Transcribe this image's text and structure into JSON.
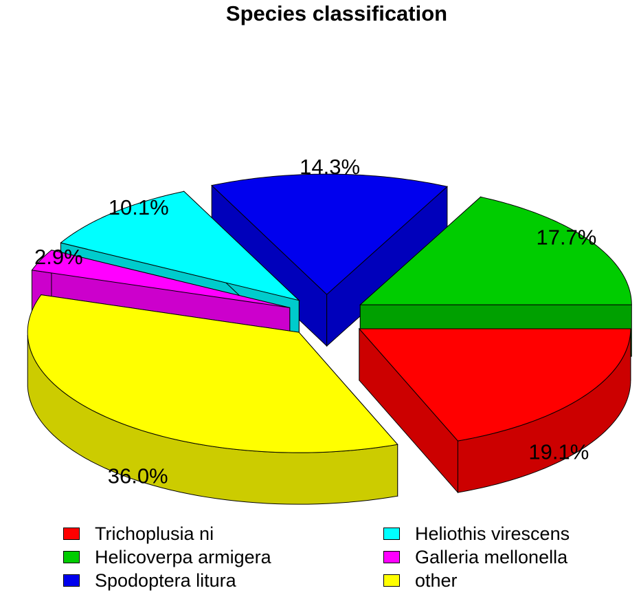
{
  "chart_data": {
    "type": "pie",
    "title": "Species classification",
    "three_d": true,
    "exploded": true,
    "slices": [
      {
        "name": "Trichoplusia ni",
        "value": 19.1,
        "label": "19.1%",
        "color": "#ff0000",
        "side_color": "#cc0000"
      },
      {
        "name": "other",
        "value": 36.0,
        "label": "36.0%",
        "color": "#ffff00",
        "side_color": "#cccc00"
      },
      {
        "name": "Galleria mellonella",
        "value": 2.9,
        "label": "2.9%",
        "color": "#ff00ff",
        "side_color": "#cc00cc"
      },
      {
        "name": "Heliothis virescens",
        "value": 10.1,
        "label": "10.1%",
        "color": "#00ffff",
        "side_color": "#00cccc"
      },
      {
        "name": "Spodoptera litura",
        "value": 14.3,
        "label": "14.3%",
        "color": "#0000ee",
        "side_color": "#0000bb"
      },
      {
        "name": "Helicoverpa armigera",
        "value": 17.7,
        "label": "17.7%",
        "color": "#00cc00",
        "side_color": "#00a000"
      }
    ],
    "legend": {
      "placement": "bottom",
      "columns": [
        [
          "Trichoplusia ni",
          "Helicoverpa armigera",
          "Spodoptera litura"
        ],
        [
          "Heliothis virescens",
          "Galleria mellonella",
          "other"
        ]
      ]
    }
  }
}
